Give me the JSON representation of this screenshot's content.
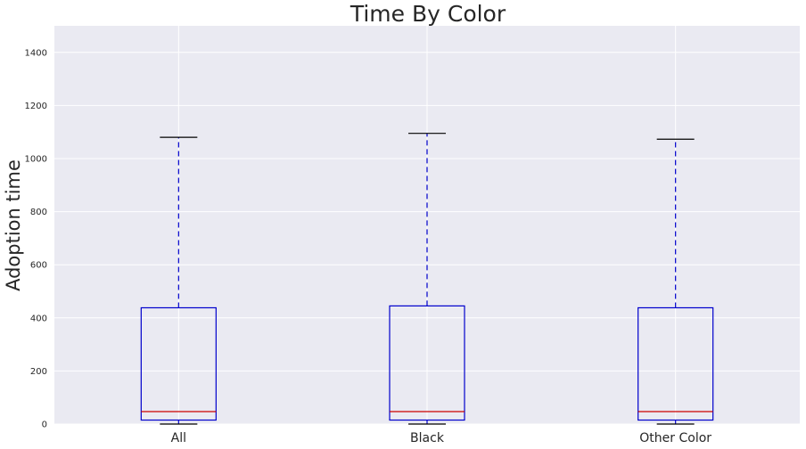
{
  "chart_data": {
    "type": "box",
    "title": "Time By Color",
    "xlabel": "",
    "ylabel": "Adoption time",
    "ylim": [
      0,
      1500
    ],
    "yticks": [
      0,
      200,
      400,
      600,
      800,
      1000,
      1200,
      1400
    ],
    "grid": true,
    "categories": [
      "All",
      "Black",
      "Other Color"
    ],
    "boxes": [
      {
        "label": "All",
        "whislo": 0,
        "q1": 15,
        "med": 47,
        "q3": 438,
        "whishi": 1080
      },
      {
        "label": "Black",
        "whislo": 0,
        "q1": 15,
        "med": 47,
        "q3": 445,
        "whishi": 1095
      },
      {
        "label": "Other Color",
        "whislo": 0,
        "q1": 15,
        "med": 47,
        "q3": 438,
        "whishi": 1073
      }
    ],
    "colors": {
      "background": "#eaeaf2",
      "grid": "#ffffff",
      "box": "#0000cc",
      "whisker": "#0000cc",
      "median": "#cc0000",
      "cap": "#000000"
    }
  }
}
